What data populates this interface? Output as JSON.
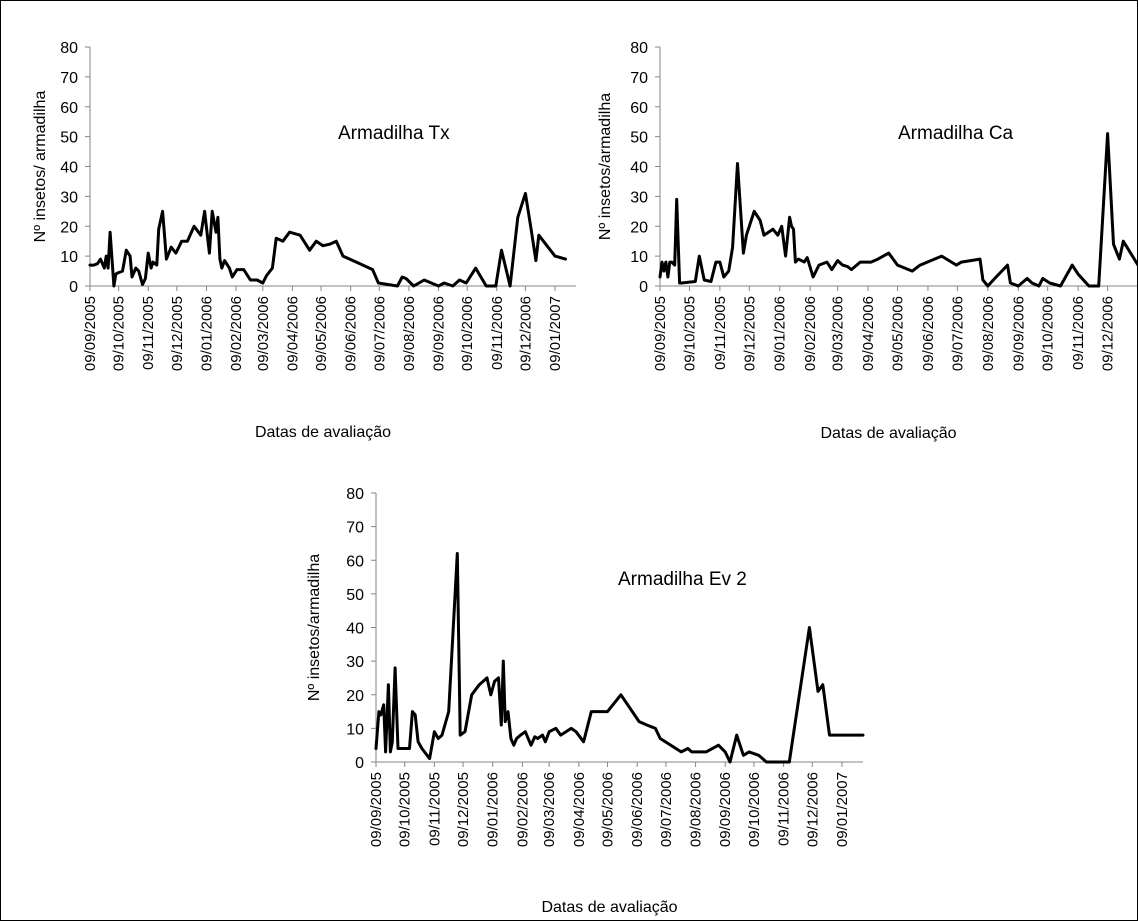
{
  "chart_data": [
    {
      "type": "line",
      "title": "Armadilha Tx",
      "xlabel": "Datas de avaliação",
      "ylabel": "Nº insetos/ armadilha",
      "ylim": [
        0,
        80
      ],
      "yticks": [
        0,
        10,
        20,
        30,
        40,
        50,
        60,
        70,
        80
      ],
      "xlim": [
        "2005-09-09",
        "2007-01-31"
      ],
      "xticks": [
        "2005-09-09",
        "2005-10-09",
        "2005-11-09",
        "2005-12-09",
        "2006-01-09",
        "2006-02-09",
        "2006-03-09",
        "2006-04-09",
        "2006-05-09",
        "2006-06-09",
        "2006-07-09",
        "2006-08-09",
        "2006-09-09",
        "2006-10-09",
        "2006-11-09",
        "2006-12-09",
        "2007-01-09"
      ],
      "xtick_labels": [
        "09/09/2005",
        "09/10/2005",
        "09/11/2005",
        "09/12/2005",
        "09/01/2006",
        "09/02/2006",
        "09/03/2006",
        "09/04/2006",
        "09/05/2006",
        "09/06/2006",
        "09/07/2006",
        "09/08/2006",
        "09/09/2006",
        "09/10/2006",
        "09/11/2006",
        "09/12/2006",
        "09/01/2007"
      ],
      "grid": false,
      "series": [
        {
          "x": [
            "2005-09-09",
            "2005-09-13",
            "2005-09-17",
            "2005-09-20",
            "2005-09-24",
            "2005-09-26",
            "2005-09-28",
            "2005-09-30",
            "2005-10-04",
            "2005-10-06",
            "2005-10-09",
            "2005-10-13",
            "2005-10-17",
            "2005-10-21",
            "2005-10-23",
            "2005-10-27",
            "2005-10-30",
            "2005-11-03",
            "2005-11-06",
            "2005-11-09",
            "2005-11-12",
            "2005-11-14",
            "2005-11-18",
            "2005-11-20",
            "2005-11-24",
            "2005-11-28",
            "2005-12-03",
            "2005-12-08",
            "2005-12-14",
            "2005-12-20",
            "2005-12-27",
            "2006-01-03",
            "2006-01-07",
            "2006-01-12",
            "2006-01-15",
            "2006-01-19",
            "2006-01-21",
            "2006-01-23",
            "2006-01-25",
            "2006-01-28",
            "2006-02-02",
            "2006-02-05",
            "2006-02-10",
            "2006-02-17",
            "2006-02-24",
            "2006-03-03",
            "2006-03-09",
            "2006-03-13",
            "2006-03-19",
            "2006-03-23",
            "2006-03-30",
            "2006-04-06",
            "2006-04-17",
            "2006-04-27",
            "2006-05-04",
            "2006-05-11",
            "2006-05-18",
            "2006-05-25",
            "2006-06-01",
            "2006-06-15",
            "2006-07-02",
            "2006-07-08",
            "2006-07-28",
            "2006-08-02",
            "2006-08-06",
            "2006-08-14",
            "2006-08-25",
            "2006-09-09",
            "2006-09-15",
            "2006-09-24",
            "2006-10-01",
            "2006-10-08",
            "2006-10-18",
            "2006-10-29",
            "2006-11-08",
            "2006-11-14",
            "2006-11-23",
            "2006-12-01",
            "2006-12-09",
            "2006-12-15",
            "2006-12-20",
            "2006-12-23",
            "2007-01-09",
            "2007-01-20"
          ],
          "values": [
            7,
            7,
            7.5,
            9,
            6,
            10,
            6,
            18,
            0,
            4,
            4.5,
            5,
            12,
            10,
            3,
            6,
            5,
            0.5,
            2.5,
            11,
            6,
            8,
            7,
            19,
            25,
            9,
            13,
            11,
            15,
            15,
            20,
            17,
            25,
            11,
            25,
            18,
            23,
            9,
            6,
            8.5,
            6,
            3,
            5.5,
            5.5,
            2,
            2,
            1,
            3.5,
            6,
            16,
            15,
            18,
            17,
            12,
            15,
            13.5,
            14,
            15,
            10,
            8,
            5.5,
            1,
            0,
            3,
            2.5,
            0,
            2,
            0,
            1,
            0,
            2,
            1,
            6,
            0,
            0,
            12,
            0,
            23,
            31,
            19,
            8.5,
            17,
            10,
            9
          ]
        }
      ]
    },
    {
      "type": "line",
      "title": "Armadilha Ca",
      "xlabel": "Datas de avaliação",
      "ylabel": "Nº insetos/armadilha",
      "ylim": [
        0,
        80
      ],
      "yticks": [
        0,
        10,
        20,
        30,
        40,
        50,
        60,
        70,
        80
      ],
      "xlim": [
        "2005-09-09",
        "2007-01-09"
      ],
      "xticks": [
        "2005-09-09",
        "2005-10-09",
        "2005-11-09",
        "2005-12-09",
        "2006-01-09",
        "2006-02-09",
        "2006-03-09",
        "2006-04-09",
        "2006-05-09",
        "2006-06-09",
        "2006-07-09",
        "2006-08-09",
        "2006-09-09",
        "2006-10-09",
        "2006-11-09",
        "2006-12-09",
        "2007-01-09"
      ],
      "xtick_labels": [
        "09/09/2005",
        "09/10/2005",
        "09/11/2005",
        "09/12/2005",
        "09/01/2006",
        "09/02/2006",
        "09/03/2006",
        "09/04/2006",
        "09/05/2006",
        "09/06/2006",
        "09/07/2006",
        "09/08/2006",
        "09/09/2006",
        "09/10/2006",
        "09/11/2006",
        "09/12/2006",
        "09/01/2007"
      ],
      "grid": false,
      "series": [
        {
          "x": [
            "2005-09-09",
            "2005-09-11",
            "2005-09-13",
            "2005-09-15",
            "2005-09-17",
            "2005-09-19",
            "2005-09-21",
            "2005-09-24",
            "2005-09-26",
            "2005-09-29",
            "2005-10-01",
            "2005-10-15",
            "2005-10-19",
            "2005-10-24",
            "2005-10-31",
            "2005-11-05",
            "2005-11-09",
            "2005-11-13",
            "2005-11-18",
            "2005-11-22",
            "2005-11-27",
            "2005-12-03",
            "2005-12-06",
            "2005-12-14",
            "2005-12-20",
            "2005-12-24",
            "2006-01-02",
            "2006-01-07",
            "2006-01-11",
            "2006-01-15",
            "2006-01-19",
            "2006-01-21",
            "2006-01-23",
            "2006-01-25",
            "2006-01-28",
            "2006-02-03",
            "2006-02-06",
            "2006-02-12",
            "2006-02-18",
            "2006-02-26",
            "2006-03-03",
            "2006-03-09",
            "2006-03-14",
            "2006-03-19",
            "2006-03-23",
            "2006-04-01",
            "2006-04-12",
            "2006-04-19",
            "2006-04-30",
            "2006-05-09",
            "2006-05-24",
            "2006-06-01",
            "2006-06-23",
            "2006-07-08",
            "2006-07-13",
            "2006-08-01",
            "2006-08-04",
            "2006-08-09",
            "2006-08-16",
            "2006-08-29",
            "2006-09-01",
            "2006-09-09",
            "2006-09-18",
            "2006-09-23",
            "2006-09-30",
            "2006-10-04",
            "2006-10-11",
            "2006-10-22",
            "2006-11-03",
            "2006-11-09",
            "2006-11-20",
            "2006-11-30",
            "2006-12-09",
            "2006-12-15",
            "2006-12-21",
            "2006-12-25",
            "2007-01-09",
            "2007-01-20"
          ],
          "values": [
            3,
            8,
            5,
            8,
            3,
            8,
            8,
            7,
            29,
            1,
            1,
            1.5,
            10,
            2,
            1.5,
            8,
            8,
            3,
            5,
            13,
            41,
            11,
            17,
            25,
            22,
            17,
            19,
            17,
            20,
            10,
            23,
            20,
            19,
            8,
            9,
            8,
            9.5,
            3,
            7,
            8,
            5.5,
            8.5,
            7,
            6.5,
            5.5,
            8,
            8,
            9,
            11,
            7,
            5,
            7,
            10,
            7,
            8,
            9,
            2,
            0,
            2.5,
            7,
            1,
            0,
            2.5,
            1,
            0,
            2.5,
            1,
            0,
            7,
            4,
            0,
            0,
            51,
            14,
            9,
            15,
            7,
            9
          ]
        }
      ]
    },
    {
      "type": "line",
      "title": "Armadilha Ev 2",
      "xlabel": "Datas de avaliação",
      "ylabel": "Nº insetos/armadilha",
      "ylim": [
        0,
        80
      ],
      "yticks": [
        0,
        10,
        20,
        30,
        40,
        50,
        60,
        70,
        80
      ],
      "xlim": [
        "2005-09-09",
        "2007-01-31"
      ],
      "xticks": [
        "2005-09-09",
        "2005-10-09",
        "2005-11-09",
        "2005-12-09",
        "2006-01-09",
        "2006-02-09",
        "2006-03-09",
        "2006-04-09",
        "2006-05-09",
        "2006-06-09",
        "2006-07-09",
        "2006-08-09",
        "2006-09-09",
        "2006-10-09",
        "2006-11-09",
        "2006-12-09",
        "2007-01-09"
      ],
      "xtick_labels": [
        "09/09/2005",
        "09/10/2005",
        "09/11/2005",
        "09/12/2005",
        "09/01/2006",
        "09/02/2006",
        "09/03/2006",
        "09/04/2006",
        "09/05/2006",
        "09/06/2006",
        "09/07/2006",
        "09/08/2006",
        "09/09/2006",
        "09/10/2006",
        "09/11/2006",
        "09/12/2006",
        "09/01/2007"
      ],
      "grid": false,
      "series": [
        {
          "x": [
            "2005-09-09",
            "2005-09-12",
            "2005-09-14",
            "2005-09-17",
            "2005-09-19",
            "2005-09-22",
            "2005-09-24",
            "2005-09-26",
            "2005-09-29",
            "2005-10-02",
            "2005-10-06",
            "2005-10-14",
            "2005-10-17",
            "2005-10-20",
            "2005-10-23",
            "2005-10-27",
            "2005-11-04",
            "2005-11-09",
            "2005-11-13",
            "2005-11-17",
            "2005-11-24",
            "2005-12-03",
            "2005-12-06",
            "2005-12-11",
            "2005-12-18",
            "2005-12-26",
            "2006-01-03",
            "2006-01-07",
            "2006-01-11",
            "2006-01-15",
            "2006-01-18",
            "2006-01-20",
            "2006-01-22",
            "2006-01-25",
            "2006-01-28",
            "2006-01-31",
            "2006-02-03",
            "2006-02-07",
            "2006-02-12",
            "2006-02-18",
            "2006-02-22",
            "2006-02-25",
            "2006-03-02",
            "2006-03-05",
            "2006-03-09",
            "2006-03-16",
            "2006-03-21",
            "2006-04-01",
            "2006-04-06",
            "2006-04-14",
            "2006-04-22",
            "2006-05-02",
            "2006-05-09",
            "2006-05-23",
            "2006-06-11",
            "2006-06-19",
            "2006-06-28",
            "2006-07-03",
            "2006-07-25",
            "2006-08-01",
            "2006-08-05",
            "2006-08-11",
            "2006-08-20",
            "2006-09-02",
            "2006-09-09",
            "2006-09-14",
            "2006-09-21",
            "2006-09-28",
            "2006-10-04",
            "2006-10-14",
            "2006-10-22",
            "2006-11-03",
            "2006-11-15",
            "2006-12-06",
            "2006-12-15",
            "2006-12-20",
            "2006-12-27",
            "2007-01-01",
            "2007-01-09",
            "2007-01-31"
          ],
          "values": [
            4,
            15,
            14,
            17,
            3,
            23,
            3,
            6,
            28,
            4,
            4,
            4,
            15,
            14,
            6,
            4,
            1,
            9,
            7,
            8,
            15,
            62,
            8,
            9,
            20,
            23,
            25,
            20,
            24,
            25,
            11,
            30,
            12,
            15,
            7,
            5,
            7,
            8,
            9,
            5,
            7.5,
            7,
            8,
            6,
            9,
            10,
            8,
            10,
            9,
            6,
            15,
            15,
            15,
            20,
            12,
            11,
            10,
            7,
            3,
            4,
            3,
            3,
            3,
            5,
            3,
            0,
            8,
            2,
            3,
            2,
            0,
            0,
            0,
            40,
            21,
            23,
            8,
            8,
            8,
            8
          ]
        }
      ]
    }
  ]
}
